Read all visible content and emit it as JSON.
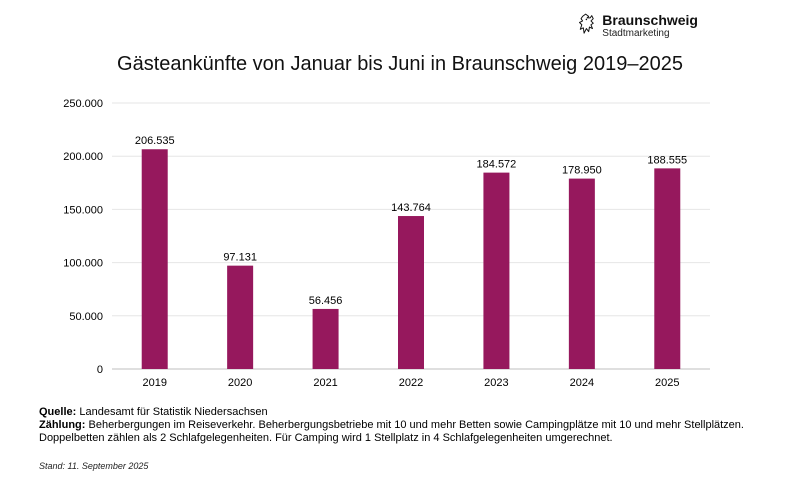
{
  "logo": {
    "name": "Braunschweig",
    "subtitle": "Stadtmarketing"
  },
  "chart_data": {
    "type": "bar",
    "title": "Gästeankünfte von Januar bis Juni in Braunschweig 2019–2025",
    "categories": [
      "2019",
      "2020",
      "2021",
      "2022",
      "2023",
      "2024",
      "2025"
    ],
    "values": [
      206535,
      97131,
      56456,
      143764,
      184572,
      178950,
      188555
    ],
    "value_labels": [
      "206.535",
      "97.131",
      "56.456",
      "143.764",
      "184.572",
      "178.950",
      "188.555"
    ],
    "yticks": [
      0,
      50000,
      100000,
      150000,
      200000,
      250000
    ],
    "ytick_labels": [
      "0",
      "50.000",
      "100.000",
      "150.000",
      "200.000",
      "250.000"
    ],
    "ylim": [
      0,
      250000
    ],
    "xlabel": "",
    "ylabel": "",
    "bar_color": "#96185d",
    "grid": true
  },
  "footer": {
    "source_label": "Quelle:",
    "source_text": " Landesamt für Statistik Niedersachsen",
    "count_label": "Zählung:",
    "count_text": " Beherbergungen im Reiseverkehr. Beherbergungsbetriebe mit 10 und mehr Betten sowie Campingplätze mit 10 und mehr Stellplätzen. Doppelbetten zählen als 2 Schlafgelegenheiten. Für Camping wird 1 Stellplatz in 4 Schlafgelegenheiten umgerechnet.",
    "stand": "Stand: 11. September 2025"
  }
}
